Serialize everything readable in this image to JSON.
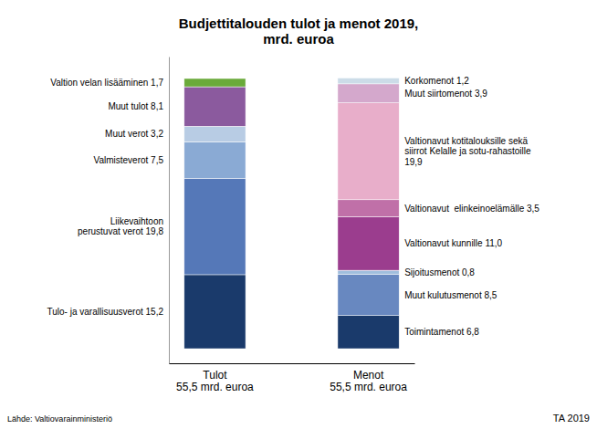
{
  "chart_data": {
    "type": "bar",
    "stacked": true,
    "title": "Budjettitalouden tulot ja menot 2019,\nmrd. euroa",
    "categories": [
      "Tulot\n55,5 mrd. euroa",
      "Menot\n55,5 mrd. euroa"
    ],
    "series": [
      {
        "name": "Tulo- ja varallisuusverot 15,2",
        "color": "#1a3a6b",
        "values": [
          15.2,
          null
        ]
      },
      {
        "name": "Liikevaihtoon\nperustuvat verot 19,8",
        "color": "#5578b8",
        "values": [
          19.8,
          null
        ]
      },
      {
        "name": "Valmisteverot 7,5",
        "color": "#8aaad4",
        "values": [
          7.5,
          null
        ]
      },
      {
        "name": "Muut verot 3,2",
        "color": "#b8cce4",
        "values": [
          3.2,
          null
        ]
      },
      {
        "name": "Muut tulot 8,1",
        "color": "#8b5a9e",
        "values": [
          8.1,
          null
        ]
      },
      {
        "name": "Valtion velan lisääminen 1,7",
        "color": "#6aaa3a",
        "values": [
          1.7,
          null
        ]
      },
      {
        "name": "Toimintamenot 6,8",
        "color": "#1a3a6b",
        "values": [
          null,
          6.8
        ]
      },
      {
        "name": "Muut kulutusmenot 8,5",
        "color": "#6888c0",
        "values": [
          null,
          8.5
        ]
      },
      {
        "name": "Sijoitusmenot 0,8",
        "color": "#a0bedd",
        "values": [
          null,
          0.8
        ]
      },
      {
        "name": "Valtionavut kunnille 11,0",
        "color": "#9b3d8e",
        "values": [
          null,
          11.0
        ]
      },
      {
        "name": "Valtionavut  elinkeinoelämälle 3,5",
        "color": "#c070a8",
        "values": [
          null,
          3.5
        ]
      },
      {
        "name": "Valtionavut kotitalouksille sekä\nsiirrot Kelalle ja sotu-rahastoille\n19,9",
        "color": "#e8aeca",
        "values": [
          null,
          19.9
        ]
      },
      {
        "name": "Muut siirtomenot 3,9",
        "color": "#d4a8cc",
        "values": [
          null,
          3.9
        ]
      },
      {
        "name": "Korkomenot 1,2",
        "color": "#ccdce8",
        "values": [
          null,
          1.2
        ]
      }
    ],
    "ylim": [
      -3,
      60
    ],
    "tick_labels": "x",
    "annotations": [
      "Lähde: Valtiovarainministeriö",
      "TA 2019"
    ]
  }
}
